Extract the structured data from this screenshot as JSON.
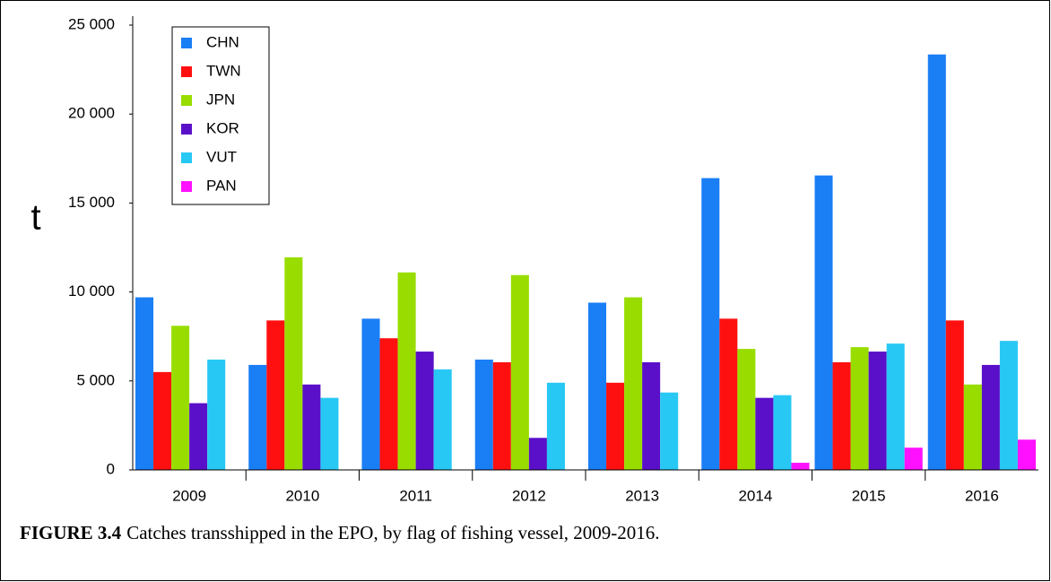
{
  "chart_data": {
    "type": "bar",
    "y_label": "t",
    "caption_label": "FIGURE 3.4",
    "caption": "Catches transshipped in the EPO, by flag of fishing vessel, 2009-2016.",
    "categories": [
      "2009",
      "2010",
      "2011",
      "2012",
      "2013",
      "2014",
      "2015",
      "2016"
    ],
    "series": [
      {
        "name": "CHN",
        "color": "#1a7ef5",
        "values": [
          9700,
          5900,
          8500,
          6200,
          9400,
          16400,
          16550,
          23350
        ]
      },
      {
        "name": "TWN",
        "color": "#ff1010",
        "values": [
          5500,
          8400,
          7400,
          6050,
          4900,
          8500,
          6050,
          8400
        ]
      },
      {
        "name": "JPN",
        "color": "#99dd00",
        "values": [
          8100,
          11950,
          11100,
          10950,
          9700,
          6800,
          6900,
          4800
        ]
      },
      {
        "name": "KOR",
        "color": "#5a10c8",
        "values": [
          3750,
          4800,
          6650,
          1800,
          6050,
          4050,
          6650,
          5900
        ]
      },
      {
        "name": "VUT",
        "color": "#28c8f5",
        "values": [
          6200,
          4050,
          5650,
          4900,
          4350,
          4200,
          7100,
          7250
        ]
      },
      {
        "name": "PAN",
        "color": "#ff10ff",
        "values": [
          0,
          0,
          0,
          0,
          0,
          400,
          1250,
          1700
        ]
      }
    ],
    "ylim": [
      0,
      25000
    ],
    "yticks": [
      0,
      {
        "value": 5000,
        "label": "5 000"
      },
      {
        "value": 10000,
        "label": "10 000"
      },
      {
        "value": 15000,
        "label": "15 000"
      },
      {
        "value": 20000,
        "label": "20 000"
      },
      {
        "value": 25000,
        "label": "25 000"
      }
    ],
    "legend": "upper left",
    "grid": false
  }
}
